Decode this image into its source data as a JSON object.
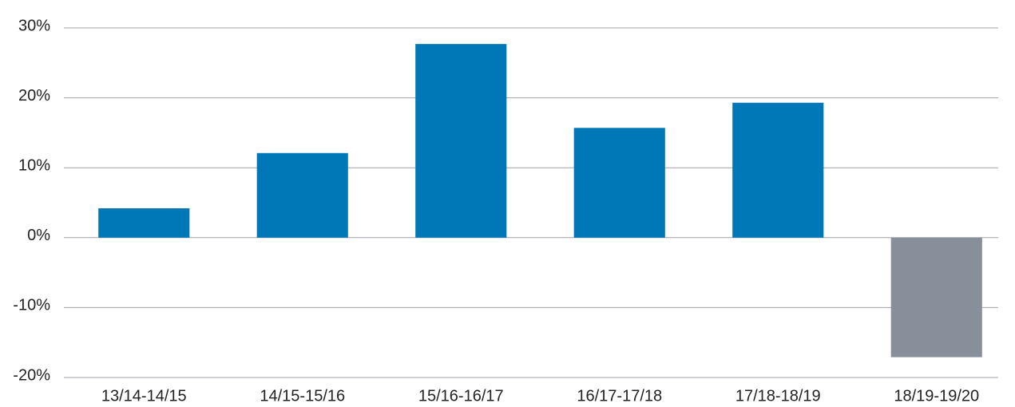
{
  "chart_data": {
    "type": "bar",
    "categories": [
      "13/14-14/15",
      "14/15-15/16",
      "15/16-16/17",
      "16/17-17/18",
      "17/18-18/19",
      "18/19-19/20"
    ],
    "values": [
      4.2,
      12.1,
      27.7,
      15.7,
      19.3,
      -17.1
    ],
    "colors": [
      "#0077b6",
      "#0077b6",
      "#0077b6",
      "#0077b6",
      "#0077b6",
      "#87909a"
    ],
    "ylim": [
      -20,
      30
    ],
    "yticks": [
      {
        "value": -20,
        "label": "-20%"
      },
      {
        "value": -10,
        "label": "-10%"
      },
      {
        "value": 0,
        "label": "0%"
      },
      {
        "value": 10,
        "label": "10%"
      },
      {
        "value": 20,
        "label": "20%"
      },
      {
        "value": 30,
        "label": "30%"
      }
    ],
    "grid": true
  }
}
